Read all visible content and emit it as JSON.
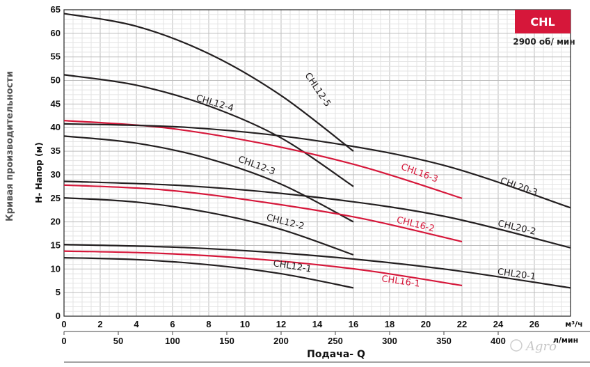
{
  "chart_data": {
    "type": "line",
    "title": "Кривая производительности",
    "ylabel": "H- Напор (м)",
    "xlabel": "Подача- Q",
    "badge": "CHL",
    "speed": "2900 об/ мин",
    "x_unit_primary": "м³/ч",
    "x_unit_secondary": "л/мин",
    "xlim": [
      0,
      28
    ],
    "ylim": [
      0,
      65
    ],
    "x_ticks": [
      "0",
      "2",
      "4",
      "6",
      "8",
      "10",
      "12",
      "14",
      "16",
      "18",
      "20",
      "22",
      "24",
      "26"
    ],
    "x_ticks_lpm": [
      "0",
      "50",
      "100",
      "150",
      "200",
      "250",
      "300",
      "350",
      "400"
    ],
    "y_ticks": [
      "0",
      "5",
      "10",
      "15",
      "20",
      "25",
      "30",
      "35",
      "40",
      "45",
      "50",
      "55",
      "60",
      "65"
    ],
    "watermark": "Agro",
    "series": [
      {
        "name": "CHL12-1",
        "color": "#231f20",
        "x": [
          0,
          4,
          8,
          12,
          16
        ],
        "y": [
          12.4,
          12.0,
          10.9,
          9.0,
          6.0
        ]
      },
      {
        "name": "CHL12-2",
        "color": "#231f20",
        "x": [
          0,
          4,
          8,
          12,
          16
        ],
        "y": [
          25.1,
          24.2,
          22.0,
          18.4,
          13.0
        ]
      },
      {
        "name": "CHL12-3",
        "color": "#231f20",
        "x": [
          0,
          4,
          8,
          12,
          16
        ],
        "y": [
          38.2,
          36.7,
          33.4,
          28.0,
          20.0
        ]
      },
      {
        "name": "CHL12-4",
        "color": "#231f20",
        "x": [
          0,
          4,
          8,
          12,
          16
        ],
        "y": [
          51.2,
          49.0,
          44.6,
          37.8,
          27.5
        ]
      },
      {
        "name": "CHL12-5",
        "color": "#231f20",
        "x": [
          0,
          4,
          8,
          12,
          16
        ],
        "y": [
          64.2,
          61.5,
          55.7,
          46.8,
          35.0
        ]
      },
      {
        "name": "CHL16-1",
        "color": "#d6173a",
        "x": [
          0,
          5.5,
          11,
          16.5,
          22
        ],
        "y": [
          13.8,
          13.3,
          12.0,
          9.8,
          6.5
        ]
      },
      {
        "name": "CHL16-2",
        "color": "#d6173a",
        "x": [
          0,
          5.5,
          11,
          16.5,
          22
        ],
        "y": [
          27.8,
          26.8,
          24.2,
          20.7,
          15.8
        ]
      },
      {
        "name": "CHL16-3",
        "color": "#d6173a",
        "x": [
          0,
          5.5,
          11,
          16.5,
          22
        ],
        "y": [
          41.5,
          40.0,
          36.6,
          31.7,
          25.0
        ]
      },
      {
        "name": "CHL20-1",
        "color": "#231f20",
        "x": [
          0,
          7,
          14,
          21,
          28
        ],
        "y": [
          15.2,
          14.5,
          12.8,
          10.0,
          6.0
        ]
      },
      {
        "name": "CHL20-2",
        "color": "#231f20",
        "x": [
          0,
          7,
          14,
          21,
          28
        ],
        "y": [
          28.6,
          27.6,
          25.2,
          21.2,
          14.5
        ]
      },
      {
        "name": "CHL20-3",
        "color": "#231f20",
        "x": [
          0,
          7,
          14,
          21,
          28
        ],
        "y": [
          40.8,
          40.0,
          37.2,
          32.0,
          23.0
        ]
      }
    ],
    "labels": [
      {
        "text": "CHL12-1",
        "x": 12.6,
        "y": 10.0,
        "angle": 9,
        "color": "#231f20"
      },
      {
        "text": "CHL12-2",
        "x": 12.2,
        "y": 19.4,
        "angle": 14,
        "color": "#231f20"
      },
      {
        "text": "CHL12-3",
        "x": 10.6,
        "y": 31.4,
        "angle": 20,
        "color": "#231f20"
      },
      {
        "text": "CHL12-4",
        "x": 8.3,
        "y": 44.6,
        "angle": 16,
        "color": "#231f20"
      },
      {
        "text": "CHL12-5",
        "x": 13.9,
        "y": 47.7,
        "angle": 56,
        "color": "#231f20"
      },
      {
        "text": "CHL16-1",
        "x": 18.6,
        "y": 6.8,
        "angle": 8,
        "color": "#d6173a"
      },
      {
        "text": "CHL16-2",
        "x": 19.4,
        "y": 18.9,
        "angle": 14,
        "color": "#d6173a"
      },
      {
        "text": "CHL16-3",
        "x": 19.6,
        "y": 29.8,
        "angle": 20,
        "color": "#d6173a"
      },
      {
        "text": "CHL20-1",
        "x": 25.0,
        "y": 8.3,
        "angle": 8,
        "color": "#231f20"
      },
      {
        "text": "CHL20-2",
        "x": 25.0,
        "y": 18.2,
        "angle": 13,
        "color": "#231f20"
      },
      {
        "text": "CHL20-3",
        "x": 25.1,
        "y": 26.9,
        "angle": 19,
        "color": "#231f20"
      }
    ]
  }
}
